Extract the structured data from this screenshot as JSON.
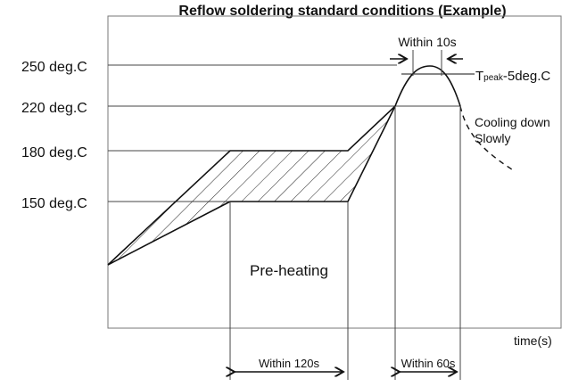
{
  "title": "Reflow soldering standard conditions (Example)",
  "y_labels": [
    "250 deg.C",
    "220 deg.C",
    "180 deg.C",
    "150 deg.C"
  ],
  "x_axis_label": "time(s)",
  "annotations": {
    "within_10s": "Within 10s",
    "tpeak_main": "T",
    "tpeak_sub": "peak",
    "tpeak_rest": "-5deg.C",
    "cooling_1": "Cooling down",
    "cooling_2": "Slowly",
    "preheating": "Pre-heating",
    "within_120s": "Within 120s",
    "within_60s": "Within 60s"
  }
}
